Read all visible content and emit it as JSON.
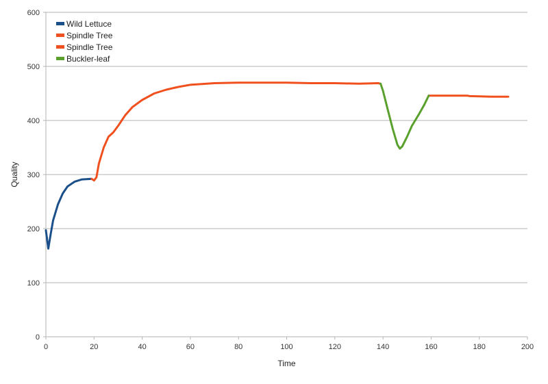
{
  "chart_data": {
    "type": "line",
    "title": "",
    "xlabel": "Time",
    "ylabel": "Quality",
    "xlim": [
      0,
      200
    ],
    "ylim": [
      0,
      600
    ],
    "x_ticks": [
      0,
      20,
      40,
      60,
      80,
      100,
      120,
      140,
      160,
      180,
      200
    ],
    "y_ticks": [
      0,
      100,
      200,
      300,
      400,
      500,
      600
    ],
    "grid": "horizontal",
    "legend_position": "top-left",
    "series": [
      {
        "name": "Wild Lettuce",
        "color": "#1a4f8a",
        "points": [
          [
            0,
            197
          ],
          [
            1,
            163
          ],
          [
            2,
            190
          ],
          [
            3,
            215
          ],
          [
            5,
            245
          ],
          [
            7,
            265
          ],
          [
            9,
            278
          ],
          [
            12,
            287
          ],
          [
            15,
            291
          ],
          [
            19,
            292
          ]
        ]
      },
      {
        "name": "Spindle Tree",
        "color": "#f0501e",
        "points": [
          [
            19,
            292
          ],
          [
            20,
            289
          ],
          [
            21,
            295
          ],
          [
            22,
            320
          ],
          [
            24,
            350
          ],
          [
            26,
            370
          ],
          [
            28,
            378
          ],
          [
            30,
            390
          ],
          [
            33,
            410
          ],
          [
            36,
            425
          ],
          [
            40,
            438
          ],
          [
            45,
            450
          ],
          [
            50,
            457
          ],
          [
            55,
            462
          ],
          [
            60,
            466
          ],
          [
            70,
            469
          ],
          [
            80,
            470
          ],
          [
            90,
            470
          ],
          [
            100,
            470
          ],
          [
            110,
            469
          ],
          [
            120,
            469
          ],
          [
            130,
            468
          ],
          [
            138,
            469
          ],
          [
            139,
            468
          ]
        ]
      },
      {
        "name": "Spindle Tree",
        "color": "#f0501e",
        "points": [
          [
            159,
            446
          ],
          [
            165,
            446
          ],
          [
            175,
            446
          ],
          [
            176,
            445
          ],
          [
            185,
            444
          ],
          [
            192,
            444
          ]
        ]
      },
      {
        "name": "Buckler-leaf",
        "color": "#5aa02c",
        "points": [
          [
            139,
            468
          ],
          [
            140,
            455
          ],
          [
            142,
            420
          ],
          [
            144,
            385
          ],
          [
            146,
            355
          ],
          [
            147,
            348
          ],
          [
            148,
            352
          ],
          [
            150,
            370
          ],
          [
            152,
            390
          ],
          [
            155,
            412
          ],
          [
            157,
            428
          ],
          [
            159,
            446
          ]
        ]
      }
    ]
  }
}
